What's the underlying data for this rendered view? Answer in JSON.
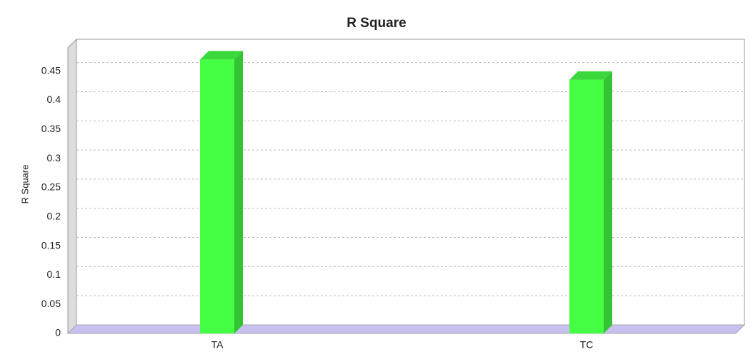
{
  "chart_data": {
    "type": "bar3d",
    "title": "R Square",
    "y_label": "R Square",
    "categories": [
      "TA",
      "TC"
    ],
    "values": [
      0.47,
      0.435
    ],
    "color": "#44ff44",
    "ylim": [
      0,
      0.49
    ],
    "yticks": [
      0,
      0.05,
      0.1,
      0.15,
      0.2,
      0.25,
      0.3,
      0.35,
      0.4,
      0.45
    ],
    "grid": true
  }
}
